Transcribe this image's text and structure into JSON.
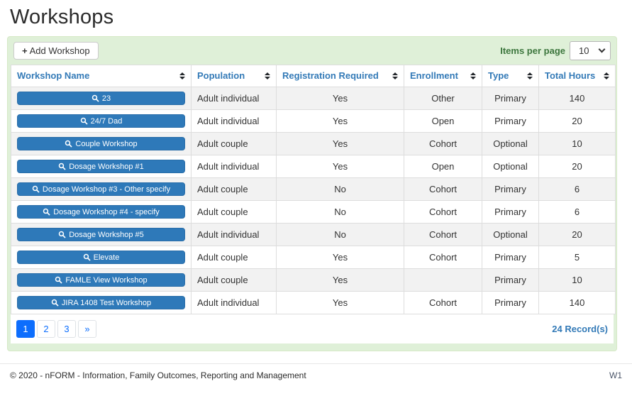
{
  "page": {
    "title": "Workshops"
  },
  "toolbar": {
    "add_button_label": "Add Workshop",
    "add_button_plus": "+",
    "items_per_page_label": "Items per page",
    "items_per_page_value": "10"
  },
  "table": {
    "columns": [
      {
        "label": "Workshop Name"
      },
      {
        "label": "Population"
      },
      {
        "label": "Registration Required"
      },
      {
        "label": "Enrollment"
      },
      {
        "label": "Type"
      },
      {
        "label": "Total Hours"
      }
    ],
    "rows": [
      {
        "name": "23",
        "population": "Adult individual",
        "registration": "Yes",
        "enrollment": "Other",
        "type": "Primary",
        "hours": "140"
      },
      {
        "name": "24/7 Dad",
        "population": "Adult individual",
        "registration": "Yes",
        "enrollment": "Open",
        "type": "Primary",
        "hours": "20"
      },
      {
        "name": "Couple Workshop",
        "population": "Adult couple",
        "registration": "Yes",
        "enrollment": "Cohort",
        "type": "Optional",
        "hours": "10"
      },
      {
        "name": "Dosage Workshop #1",
        "population": "Adult individual",
        "registration": "Yes",
        "enrollment": "Open",
        "type": "Optional",
        "hours": "20"
      },
      {
        "name": "Dosage Workshop #3 - Other specify",
        "population": "Adult couple",
        "registration": "No",
        "enrollment": "Cohort",
        "type": "Primary",
        "hours": "6"
      },
      {
        "name": "Dosage Workshop #4 - specify",
        "population": "Adult couple",
        "registration": "No",
        "enrollment": "Cohort",
        "type": "Primary",
        "hours": "6"
      },
      {
        "name": "Dosage Workshop #5",
        "population": "Adult individual",
        "registration": "No",
        "enrollment": "Cohort",
        "type": "Optional",
        "hours": "20"
      },
      {
        "name": "Elevate",
        "population": "Adult couple",
        "registration": "Yes",
        "enrollment": "Cohort",
        "type": "Primary",
        "hours": "5"
      },
      {
        "name": "FAMLE View Workshop",
        "population": "Adult couple",
        "registration": "Yes",
        "enrollment": "",
        "type": "Primary",
        "hours": "10"
      },
      {
        "name": "JIRA 1408 Test Workshop",
        "population": "Adult individual",
        "registration": "Yes",
        "enrollment": "Cohort",
        "type": "Primary",
        "hours": "140"
      }
    ]
  },
  "pagination": {
    "pages": [
      "1",
      "2",
      "3",
      "»"
    ],
    "active_page": "1",
    "records_label": "24 Record(s)"
  },
  "footer": {
    "copyright": "© 2020 - nFORM - Information, Family Outcomes, Reporting and Management",
    "version": "W1"
  },
  "colors": {
    "panel_green": "#dff0d8",
    "panel_border_green": "#d6e9c6",
    "items_per_page_green": "#3c763d",
    "header_link_blue": "#337ab7",
    "workshop_button_blue": "#2e79b9",
    "active_page_blue": "#0d6efd",
    "row_stripe_gray": "#f2f2f2"
  }
}
